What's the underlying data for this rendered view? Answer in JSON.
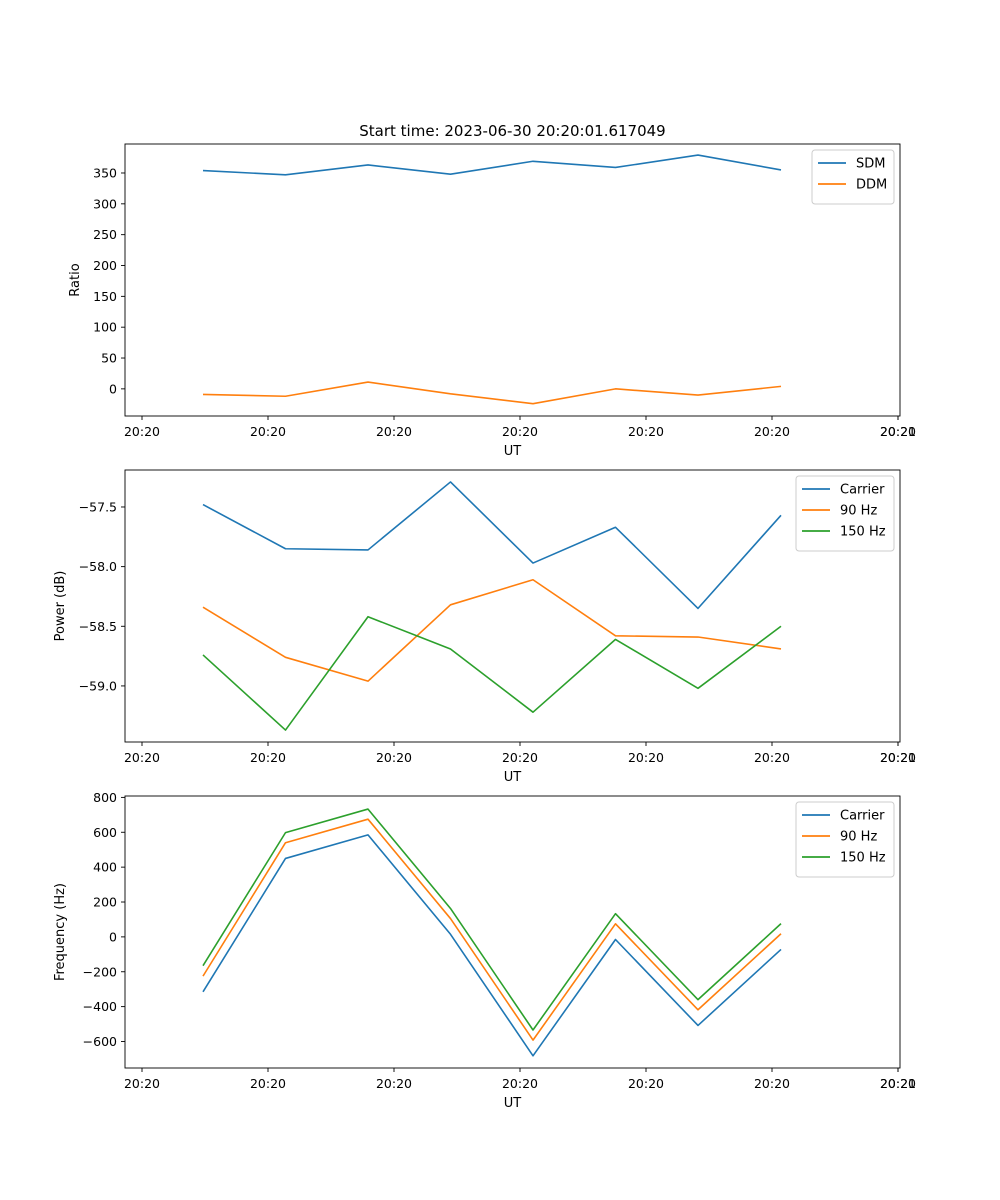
{
  "figure": {
    "title": "Start time: 2023-06-30 20:20:01.617049"
  },
  "colors": {
    "blue": "#1f77b4",
    "orange": "#ff7f0e",
    "green": "#2ca02c"
  },
  "chart_data": [
    {
      "type": "line",
      "title": "Start time: 2023-06-30 20:20:01.617049",
      "xlabel": "UT",
      "ylabel": "Ratio",
      "x_tick_labels": [
        "20:20",
        "20:20",
        "20:20",
        "20:20",
        "20:20",
        "20:20",
        "20:20",
        "20:21"
      ],
      "ylim": [
        -44,
        397
      ],
      "yticks": [
        0,
        50,
        100,
        150,
        200,
        250,
        300,
        350
      ],
      "legend_position": "upper-right",
      "grid": false,
      "series": [
        {
          "name": "SDM",
          "color": "#1f77b4",
          "values": [
            354,
            347,
            363,
            348,
            369,
            359,
            379,
            355
          ]
        },
        {
          "name": "DDM",
          "color": "#ff7f0e",
          "values": [
            -9,
            -12,
            11,
            -8,
            -24,
            0,
            -10,
            4
          ]
        }
      ]
    },
    {
      "type": "line",
      "title": "",
      "xlabel": "UT",
      "ylabel": "Power (dB)",
      "x_tick_labels": [
        "20:20",
        "20:20",
        "20:20",
        "20:20",
        "20:20",
        "20:20",
        "20:20",
        "20:21"
      ],
      "ylim": [
        -59.47,
        -57.19
      ],
      "yticks": [
        -59.0,
        -58.5,
        -58.0,
        -57.5
      ],
      "ytick_labels": [
        "−59.0",
        "−58.5",
        "−58.0",
        "−57.5"
      ],
      "legend_position": "upper-right",
      "grid": false,
      "series": [
        {
          "name": "Carrier",
          "color": "#1f77b4",
          "values": [
            -57.48,
            -57.85,
            -57.86,
            -57.29,
            -57.97,
            -57.67,
            -58.35,
            -57.57
          ]
        },
        {
          "name": "90 Hz",
          "color": "#ff7f0e",
          "values": [
            -58.34,
            -58.76,
            -58.96,
            -58.32,
            -58.11,
            -58.58,
            -58.59,
            -58.69
          ]
        },
        {
          "name": "150 Hz",
          "color": "#2ca02c",
          "values": [
            -58.74,
            -59.37,
            -58.42,
            -58.69,
            -59.22,
            -58.61,
            -59.02,
            -58.5
          ]
        }
      ]
    },
    {
      "type": "line",
      "title": "",
      "xlabel": "UT",
      "ylabel": "Frequency (Hz)",
      "x_tick_labels": [
        "20:20",
        "20:20",
        "20:20",
        "20:20",
        "20:20",
        "20:20",
        "20:20",
        "20:21"
      ],
      "ylim": [
        -752,
        808
      ],
      "yticks": [
        -600,
        -400,
        -200,
        0,
        200,
        400,
        600,
        800
      ],
      "ytick_labels": [
        "−600",
        "−400",
        "−200",
        "0",
        "200",
        "400",
        "600",
        "800"
      ],
      "legend_position": "upper-right",
      "grid": false,
      "series": [
        {
          "name": "Carrier",
          "color": "#1f77b4",
          "values": [
            -315,
            450,
            585,
            15,
            -682,
            -15,
            -508,
            -72
          ]
        },
        {
          "name": "90 Hz",
          "color": "#ff7f0e",
          "values": [
            -225,
            540,
            675,
            105,
            -592,
            75,
            -418,
            18
          ]
        },
        {
          "name": "150 Hz",
          "color": "#2ca02c",
          "values": [
            -165,
            598,
            733,
            163,
            -534,
            133,
            -360,
            76
          ]
        }
      ]
    }
  ]
}
